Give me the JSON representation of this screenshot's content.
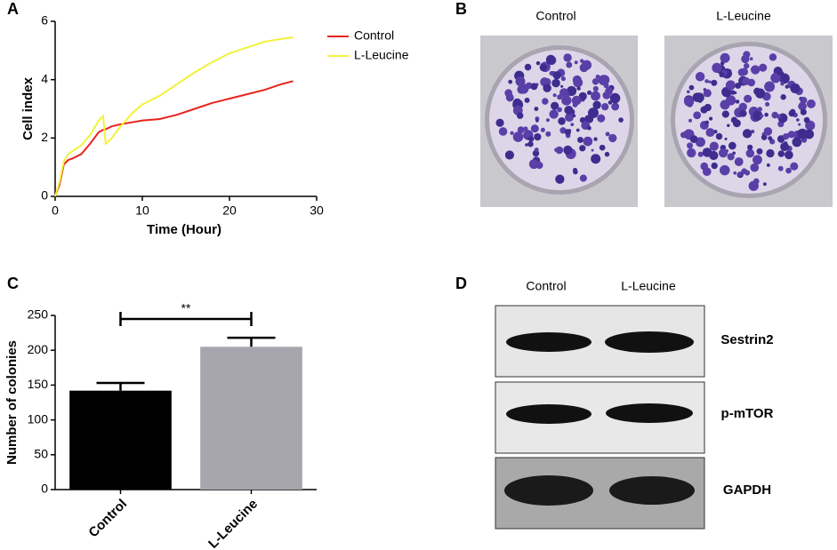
{
  "chart_data": [
    {
      "type": "line",
      "panel_label": "A",
      "xlabel": "Time (Hour)",
      "ylabel": "Cell index",
      "x": [
        0,
        0.5,
        1,
        1.5,
        2,
        3,
        4,
        5,
        5.5,
        5.8,
        6.5,
        7.5,
        9,
        10,
        12,
        14,
        16,
        18,
        20,
        22,
        24,
        26,
        27.3
      ],
      "series": [
        {
          "name": "Control",
          "color": "#e8231f",
          "values": [
            0,
            0.4,
            1.1,
            1.25,
            1.3,
            1.45,
            1.8,
            2.2,
            2.28,
            2.3,
            2.4,
            2.47,
            2.55,
            2.6,
            2.65,
            2.8,
            3.0,
            3.2,
            3.35,
            3.5,
            3.65,
            3.85,
            3.95
          ]
        },
        {
          "name": "L-Leucine",
          "color": "#f2f23a",
          "values": [
            0,
            0.5,
            1.2,
            1.45,
            1.55,
            1.75,
            2.1,
            2.6,
            2.75,
            1.8,
            2.0,
            2.4,
            2.9,
            3.15,
            3.45,
            3.85,
            4.25,
            4.6,
            4.9,
            5.1,
            5.3,
            5.4,
            5.45
          ]
        }
      ],
      "xlim": [
        0,
        30
      ],
      "xticks": [
        0,
        10,
        20,
        30
      ],
      "ylim": [
        0,
        6
      ],
      "yticks": [
        0,
        2,
        4,
        6
      ],
      "legend": "upper right"
    },
    {
      "type": "bar",
      "panel_label": "C",
      "ylabel": "Number of colonies",
      "categories": [
        "Control",
        "L-Leucine"
      ],
      "values": [
        142,
        205
      ],
      "errors": [
        11,
        13
      ],
      "colors": [
        "#000000",
        "#a7a6ae"
      ],
      "annotation": "**",
      "ylim": [
        0,
        250
      ],
      "yticks": [
        0,
        50,
        100,
        150,
        200,
        250
      ]
    }
  ],
  "panel_b": {
    "label": "B",
    "columns": [
      "Control",
      "L-Leucine"
    ]
  },
  "panel_d": {
    "label": "D",
    "columns": [
      "Control",
      "L-Leucine"
    ],
    "rows": [
      "Sestrin2",
      "p-mTOR",
      "GAPDH"
    ]
  }
}
